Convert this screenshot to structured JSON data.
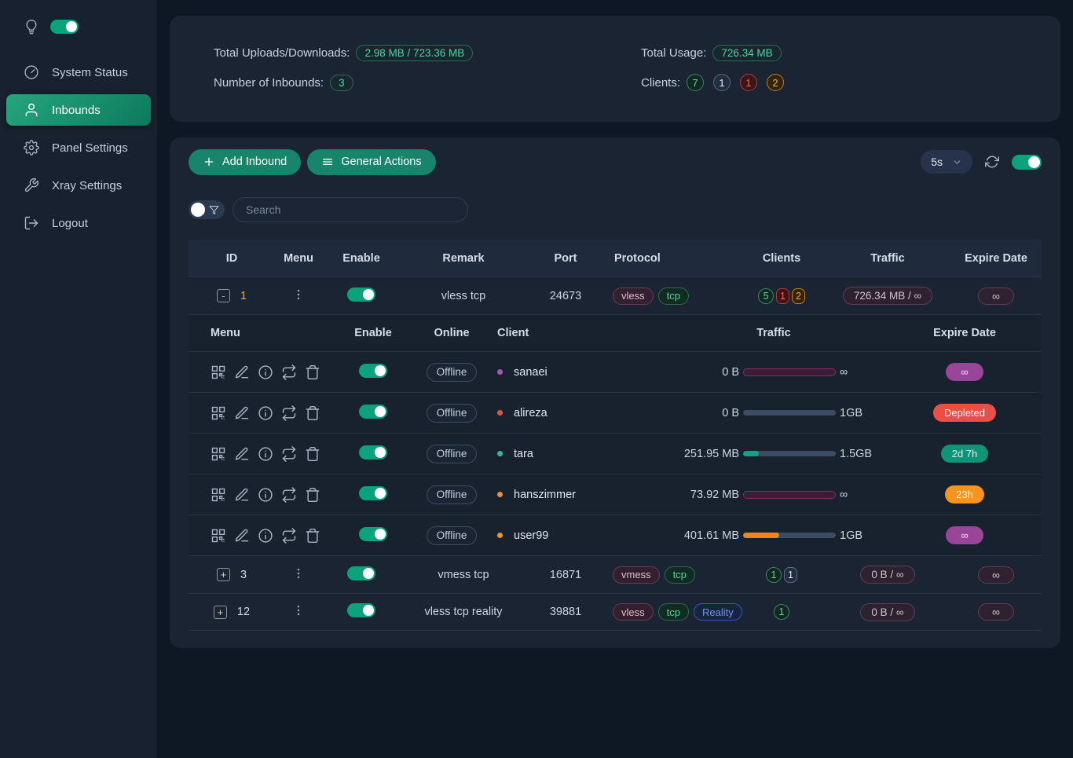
{
  "colors": {
    "accent_green": "#17846b",
    "toggle_on": "#0ba37b",
    "bar_track": "#3c4c63",
    "bar_infinite_border": "#8c2a6d"
  },
  "sidebar": {
    "theme_toggle": {
      "icon": "bulb-icon",
      "state": "on"
    },
    "items": [
      {
        "label": "System Status",
        "icon": "gauge-icon",
        "active": false
      },
      {
        "label": "Inbounds",
        "icon": "user-icon",
        "active": true
      },
      {
        "label": "Panel Settings",
        "icon": "gear-icon",
        "active": false
      },
      {
        "label": "Xray Settings",
        "icon": "wrench-icon",
        "active": false
      },
      {
        "label": "Logout",
        "icon": "logout-icon",
        "active": false
      }
    ]
  },
  "stats": {
    "uploads_downloads": {
      "label": "Total Uploads/Downloads:",
      "value": "2.98 MB / 723.36 MB"
    },
    "inbounds_count": {
      "label": "Number of Inbounds:",
      "value": "3"
    },
    "total_usage": {
      "label": "Total Usage:",
      "value": "726.34 MB"
    },
    "clients": {
      "label": "Clients:",
      "badges": [
        {
          "value": "7",
          "color": "green"
        },
        {
          "value": "1",
          "color": "gray"
        },
        {
          "value": "1",
          "color": "red"
        },
        {
          "value": "2",
          "color": "orange"
        }
      ]
    }
  },
  "toolbar": {
    "add_inbound": "Add Inbound",
    "general_actions": "General Actions",
    "refresh_interval": "5s",
    "auto_refresh": "on"
  },
  "search": {
    "placeholder": "Search",
    "filter_toggle": "off"
  },
  "inbounds_table": {
    "headers": [
      "ID",
      "Menu",
      "Enable",
      "Remark",
      "Port",
      "Protocol",
      "Clients",
      "Traffic",
      "Expire Date"
    ],
    "rows": [
      {
        "expander": "-",
        "id": "1",
        "enabled": "on",
        "remark": "vless tcp",
        "port": "24673",
        "protocols": [
          {
            "label": "vless",
            "color": "maroon"
          },
          {
            "label": "tcp",
            "color": "green"
          }
        ],
        "client_badges": [
          {
            "value": "5",
            "color": "green"
          },
          {
            "value": "1",
            "color": "red"
          },
          {
            "value": "2",
            "color": "orange"
          }
        ],
        "traffic": "726.34 MB / ∞",
        "expire": "∞",
        "expanded": true
      },
      {
        "expander": "+",
        "id": "3",
        "enabled": "on",
        "remark": "vmess tcp",
        "port": "16871",
        "protocols": [
          {
            "label": "vmess",
            "color": "maroon"
          },
          {
            "label": "tcp",
            "color": "green"
          }
        ],
        "client_badges": [
          {
            "value": "1",
            "color": "green"
          },
          {
            "value": "1",
            "color": "gray"
          }
        ],
        "traffic": "0 B / ∞",
        "expire": "∞",
        "expanded": false
      },
      {
        "expander": "+",
        "id": "12",
        "enabled": "on",
        "remark": "vless tcp reality",
        "port": "39881",
        "protocols": [
          {
            "label": "vless",
            "color": "maroon"
          },
          {
            "label": "tcp",
            "color": "green"
          },
          {
            "label": "Reality",
            "color": "blue"
          }
        ],
        "client_badges": [
          {
            "value": "1",
            "color": "green"
          }
        ],
        "traffic": "0 B / ∞",
        "expire": "∞",
        "expanded": false
      }
    ]
  },
  "client_table": {
    "headers": [
      "Menu",
      "Enable",
      "Online",
      "Client",
      "Traffic",
      "Expire Date"
    ],
    "menu_icons": [
      "qrcode-icon",
      "edit-icon",
      "info-icon",
      "reset-traffic-icon",
      "delete-icon"
    ],
    "rows": [
      {
        "enabled": "on",
        "online": "Offline",
        "name": "sanaei",
        "dot_color": "#a855b0",
        "used": "0 B",
        "limit": "∞",
        "bar_style": "infinite",
        "bar_pct": 100,
        "bar_color": "#8c2a6d",
        "expire": "∞",
        "expire_color": "purple"
      },
      {
        "enabled": "on",
        "online": "Offline",
        "name": "alireza",
        "dot_color": "#e0524e",
        "used": "0 B",
        "limit": "1GB",
        "bar_style": "normal",
        "bar_pct": 0,
        "bar_color": "#3c4c63",
        "expire": "Depleted",
        "expire_color": "red"
      },
      {
        "enabled": "on",
        "online": "Offline",
        "name": "tara",
        "dot_color": "#2dbd96",
        "used": "251.95 MB",
        "limit": "1.5GB",
        "bar_style": "normal",
        "bar_pct": 17,
        "bar_color": "#16a085",
        "expire": "2d 7h",
        "expire_color": "teal"
      },
      {
        "enabled": "on",
        "online": "Offline",
        "name": "hanszimmer",
        "dot_color": "#f08c3a",
        "used": "73.92 MB",
        "limit": "∞",
        "bar_style": "infinite",
        "bar_pct": 100,
        "bar_color": "#8c2a6d",
        "expire": "23h",
        "expire_color": "orange"
      },
      {
        "enabled": "on",
        "online": "Offline",
        "name": "user99",
        "dot_color": "#f5921e",
        "used": "401.61 MB",
        "limit": "1GB",
        "bar_style": "normal",
        "bar_pct": 39,
        "bar_color": "#f0841c",
        "expire": "∞",
        "expire_color": "purple"
      }
    ]
  }
}
